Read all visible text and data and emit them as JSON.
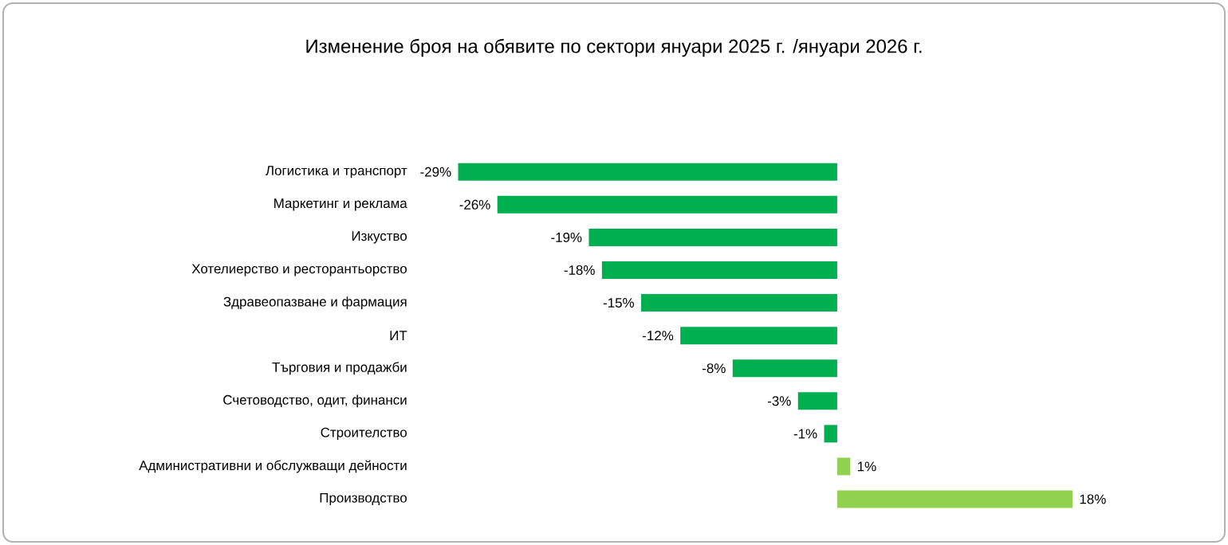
{
  "chart_data": {
    "type": "bar",
    "orientation": "horizontal",
    "title": "Изменение броя на обявите по сектори януари 2025 г. /януари 2026 г.",
    "categories": [
      "Логистика и транспорт",
      "Маркетинг и реклама",
      "Изкуство",
      "Хотелиерство и ресторантьорство",
      "Здравеопазване и фармация",
      "ИТ",
      "Търговия и продажби",
      "Счетоводство, одит, финанси",
      "Строителство",
      "Административни и обслужващи дейности",
      "Производство"
    ],
    "values": [
      -29,
      -26,
      -19,
      -18,
      -15,
      -12,
      -8,
      -3,
      -1,
      1,
      18
    ],
    "value_labels": [
      "-29%",
      "-26%",
      "-19%",
      "-18%",
      "-15%",
      "-12%",
      "-8%",
      "-3%",
      "-1%",
      "1%",
      "18%"
    ],
    "colors": [
      "#00b050",
      "#00b050",
      "#00b050",
      "#00b050",
      "#00b050",
      "#00b050",
      "#00b050",
      "#00b050",
      "#00b050",
      "#92d050",
      "#92d050"
    ]
  }
}
